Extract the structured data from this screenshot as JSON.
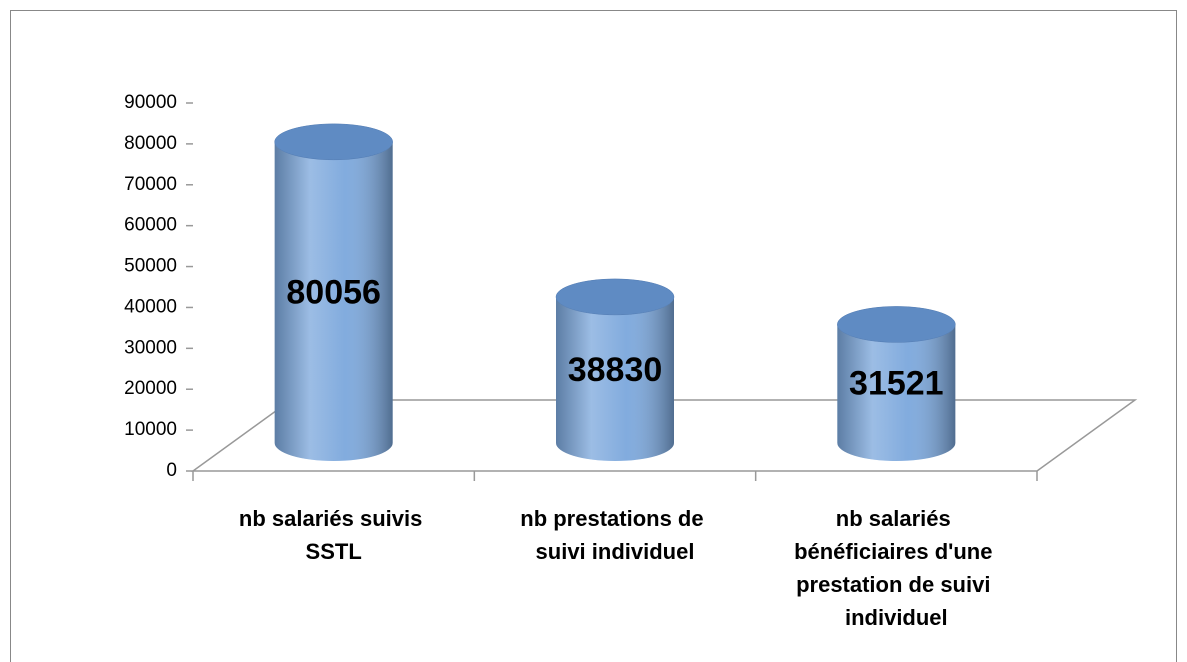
{
  "chart_data": {
    "type": "bar3d",
    "categories": [
      "nb salariés suivis SSTL",
      "nb prestations de suivi individuel",
      "nb salariés bénéficiaires d'une prestation de suivi individuel"
    ],
    "values": [
      80056,
      38830,
      31521
    ],
    "color": "#7ba7dc",
    "ylim": [
      0,
      90000
    ],
    "yticks": [
      0,
      10000,
      20000,
      30000,
      40000,
      50000,
      60000,
      70000,
      80000,
      90000
    ],
    "grid": false
  }
}
